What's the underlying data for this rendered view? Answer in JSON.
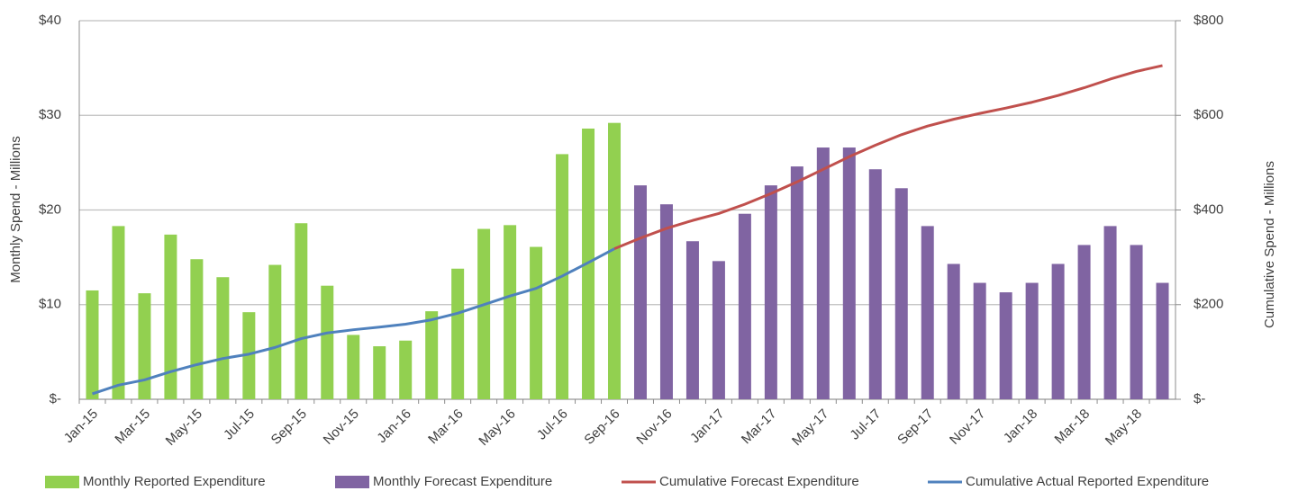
{
  "chart_data": {
    "type": "bar",
    "categories": [
      "Jan-15",
      null,
      "Mar-15",
      null,
      "May-15",
      null,
      "Jul-15",
      null,
      "Sep-15",
      null,
      "Nov-15",
      null,
      "Jan-16",
      null,
      "Mar-16",
      null,
      "May-16",
      null,
      "Jul-16",
      null,
      "Sep-16",
      null,
      "Nov-16",
      null,
      "Jan-17",
      null,
      "Mar-17",
      null,
      "May-17",
      null,
      "Jul-17",
      null,
      "Sep-17",
      null,
      "Nov-17",
      null,
      "Jan-18",
      null,
      "Mar-18",
      null,
      "May-18",
      null
    ],
    "y_label": "Monthly Spend - Millions",
    "y2_label": "Cumulative Spend - Millions",
    "ylim": [
      0,
      40
    ],
    "yticks": [
      {
        "value": 0,
        "label": "$-"
      },
      {
        "value": 10,
        "label": "$10"
      },
      {
        "value": 20,
        "label": "$20"
      },
      {
        "value": 30,
        "label": "$30"
      },
      {
        "value": 40,
        "label": "$40"
      }
    ],
    "y2lim": [
      0,
      800
    ],
    "y2ticks": [
      {
        "value": 0,
        "label": "$-"
      },
      {
        "value": 200,
        "label": "$200"
      },
      {
        "value": 400,
        "label": "$400"
      },
      {
        "value": 600,
        "label": "$600"
      },
      {
        "value": 800,
        "label": "$800"
      }
    ],
    "grid": true,
    "legend": "bottom",
    "series": [
      {
        "name": "Monthly Reported Expenditure",
        "type": "bar",
        "color": "#92d050",
        "values": [
          11.5,
          18.3,
          11.2,
          17.4,
          14.8,
          12.9,
          9.2,
          14.2,
          18.6,
          12.0,
          6.8,
          5.6,
          6.2,
          9.3,
          13.8,
          18.0,
          18.4,
          16.1,
          25.9,
          28.6,
          29.2,
          null,
          null,
          null,
          null,
          null,
          null,
          null,
          null,
          null,
          null,
          null,
          null,
          null,
          null,
          null,
          null,
          null,
          null,
          null,
          null,
          null
        ]
      },
      {
        "name": "Monthly Forecast Expenditure",
        "type": "bar",
        "color": "#8064a2",
        "values": [
          null,
          null,
          null,
          null,
          null,
          null,
          null,
          null,
          null,
          null,
          null,
          null,
          null,
          null,
          null,
          null,
          null,
          null,
          null,
          null,
          null,
          22.6,
          20.6,
          16.7,
          14.6,
          19.6,
          22.6,
          24.6,
          26.6,
          26.6,
          24.3,
          22.3,
          18.3,
          14.3,
          12.3,
          11.3,
          12.3,
          14.3,
          16.3,
          18.3,
          16.3,
          12.3
        ]
      },
      {
        "name": "Cumulative Forecast Expenditure",
        "type": "line",
        "axis": "y2",
        "color": "#c0504d",
        "values": [
          null,
          null,
          null,
          null,
          null,
          null,
          null,
          null,
          null,
          null,
          null,
          null,
          null,
          null,
          null,
          null,
          null,
          null,
          null,
          null,
          318,
          340.6,
          361.2,
          377.9,
          392.5,
          412.1,
          434.7,
          459.3,
          485.9,
          512.5,
          536.8,
          559.1,
          577.4,
          591.7,
          604,
          615.3,
          627.6,
          641.9,
          658.2,
          676.5,
          692.8,
          705.1
        ]
      },
      {
        "name": "Cumulative Actual Reported Expenditure",
        "type": "line",
        "axis": "y2",
        "color": "#4f81bd",
        "values": [
          11.5,
          29.8,
          41,
          58.4,
          73.2,
          86.1,
          95.3,
          109.5,
          128.1,
          140.1,
          146.9,
          152.5,
          158.7,
          168,
          181.8,
          199.8,
          218.2,
          234.3,
          260.2,
          288.8,
          318,
          null,
          null,
          null,
          null,
          null,
          null,
          null,
          null,
          null,
          null,
          null,
          null,
          null,
          null,
          null,
          null,
          null,
          null,
          null,
          null,
          null
        ]
      }
    ]
  }
}
